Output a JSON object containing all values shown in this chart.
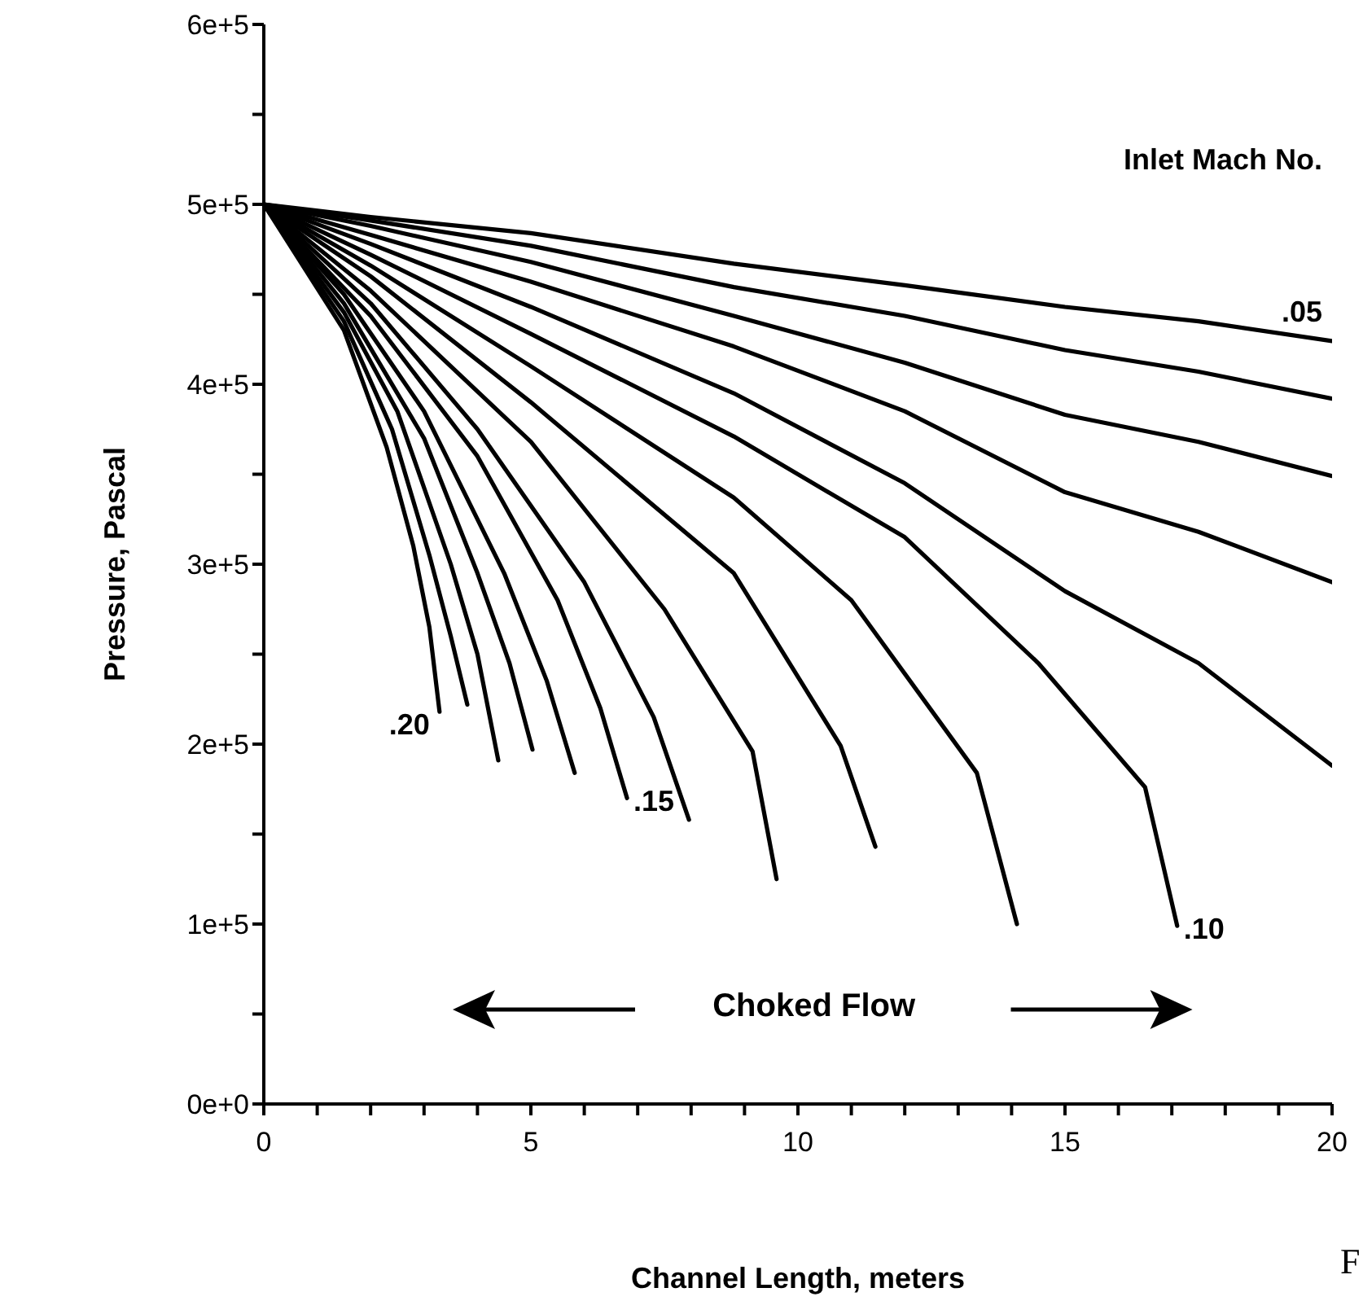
{
  "chart_data": {
    "type": "line",
    "xlabel": "Channel Length, meters",
    "ylabel": "Pressure,    Pascal",
    "xlim": [
      0,
      20
    ],
    "xticks": [
      0,
      {
        "value": 1,
        "label": null
      },
      {
        "value": 2,
        "label": null
      },
      {
        "value": 3,
        "label": null
      },
      {
        "value": 4,
        "label": null
      },
      5,
      {
        "value": 6,
        "label": null
      },
      {
        "value": 7,
        "label": null
      },
      {
        "value": 8,
        "label": null
      },
      {
        "value": 9,
        "label": null
      },
      10,
      {
        "value": 11,
        "label": null
      },
      {
        "value": 12,
        "label": null
      },
      {
        "value": 13,
        "label": null
      },
      {
        "value": 14,
        "label": null
      },
      15,
      {
        "value": 16,
        "label": null
      },
      {
        "value": 17,
        "label": null
      },
      {
        "value": 18,
        "label": null
      },
      {
        "value": 19,
        "label": null
      },
      20
    ],
    "ylim": [
      0,
      600000
    ],
    "yticks": [
      {
        "value": 0,
        "label": "0e+0"
      },
      {
        "value": 50000,
        "label": null
      },
      {
        "value": 100000,
        "label": "1e+5"
      },
      {
        "value": 150000,
        "label": null
      },
      {
        "value": 200000,
        "label": "2e+5"
      },
      {
        "value": 250000,
        "label": null
      },
      {
        "value": 300000,
        "label": "3e+5"
      },
      {
        "value": 350000,
        "label": null
      },
      {
        "value": 400000,
        "label": "4e+5"
      },
      {
        "value": 450000,
        "label": null
      },
      {
        "value": 500000,
        "label": "5e+5"
      },
      {
        "value": 550000,
        "label": null
      },
      {
        "value": 600000,
        "label": "6e+5"
      }
    ],
    "marker": "none",
    "line_style": "solid",
    "series": [
      {
        "name": ".05",
        "color": "#000000",
        "x": [
          0,
          2,
          5,
          8.8,
          12,
          15,
          17.5,
          20
        ],
        "values": [
          500000,
          493000,
          484000,
          467000,
          455000,
          443000,
          435000,
          424000
        ]
      },
      {
        "color": "#000000",
        "x": [
          0,
          2,
          5,
          8.8,
          12,
          15,
          17.5,
          20
        ],
        "values": [
          500000,
          491000,
          477000,
          454000,
          438000,
          419000,
          407000,
          392000
        ]
      },
      {
        "color": "#000000",
        "x": [
          0,
          2,
          5,
          8.8,
          12,
          15,
          17.5,
          20
        ],
        "values": [
          500000,
          488000,
          468000,
          438000,
          412000,
          383000,
          368000,
          349000
        ]
      },
      {
        "color": "#000000",
        "x": [
          0,
          2,
          5,
          8.8,
          12,
          15,
          17.5,
          20
        ],
        "values": [
          500000,
          483000,
          457000,
          421000,
          385000,
          340000,
          318000,
          290000
        ]
      },
      {
        "color": "#000000",
        "x": [
          0,
          2,
          5,
          8.8,
          12,
          15,
          17.5,
          20
        ],
        "values": [
          500000,
          478000,
          443000,
          395000,
          345000,
          285000,
          245000,
          188000
        ]
      },
      {
        "name": ".10",
        "color": "#000000",
        "x": [
          0,
          2,
          5,
          8.8,
          12,
          14.5,
          16.5,
          17.1
        ],
        "values": [
          500000,
          472000,
          428000,
          371000,
          315000,
          245000,
          176000,
          99000
        ]
      },
      {
        "color": "#000000",
        "x": [
          0,
          2,
          5,
          8.8,
          11,
          13.35,
          14.1
        ],
        "values": [
          500000,
          466000,
          410000,
          337000,
          280000,
          184000,
          100000
        ]
      },
      {
        "color": "#000000",
        "x": [
          0,
          2,
          5,
          8.8,
          10.8,
          11.45
        ],
        "values": [
          500000,
          460000,
          390000,
          295000,
          199000,
          143000
        ]
      },
      {
        "color": "#000000",
        "x": [
          0,
          2,
          5,
          7.5,
          9.15,
          9.6
        ],
        "values": [
          500000,
          452000,
          368000,
          275000,
          196000,
          125000
        ]
      },
      {
        "color": "#000000",
        "x": [
          0,
          2,
          4,
          6,
          7.3,
          7.96
        ],
        "values": [
          500000,
          445000,
          375000,
          290000,
          215000,
          158000
        ]
      },
      {
        "name": ".15",
        "color": "#000000",
        "x": [
          0,
          2,
          4,
          5.5,
          6.3,
          6.8
        ],
        "values": [
          500000,
          438000,
          360000,
          280000,
          220000,
          170000
        ]
      },
      {
        "color": "#000000",
        "x": [
          0,
          1.5,
          3,
          4.5,
          5.3,
          5.82
        ],
        "values": [
          500000,
          450000,
          385000,
          295000,
          235000,
          184000
        ]
      },
      {
        "color": "#000000",
        "x": [
          0,
          1.5,
          3,
          4,
          4.6,
          5.03
        ],
        "values": [
          500000,
          445000,
          370000,
          295000,
          245000,
          197000
        ]
      },
      {
        "color": "#000000",
        "x": [
          0,
          1.5,
          2.5,
          3.5,
          4,
          4.39
        ],
        "values": [
          500000,
          440000,
          385000,
          300000,
          250000,
          191000
        ]
      },
      {
        "color": "#000000",
        "x": [
          0,
          1.5,
          2.4,
          3.1,
          3.5,
          3.81
        ],
        "values": [
          500000,
          435000,
          375000,
          305000,
          260000,
          222000
        ]
      },
      {
        "name": ".20",
        "color": "#000000",
        "x": [
          0,
          1.5,
          2.3,
          2.8,
          3.1,
          3.29
        ],
        "values": [
          500000,
          430000,
          365000,
          310000,
          265000,
          218000
        ]
      }
    ],
    "annotations": [
      "Inlet Mach No.",
      "Choked Flow",
      "F"
    ]
  }
}
